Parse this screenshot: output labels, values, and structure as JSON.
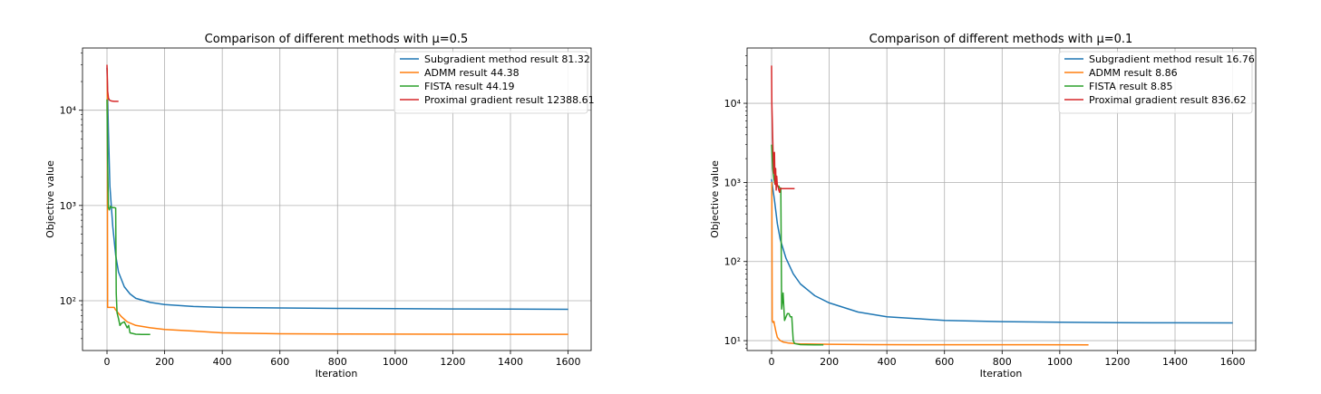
{
  "colors": {
    "subgradient": "#1f77b4",
    "admm": "#ff7f0e",
    "fista": "#2ca02c",
    "proximal": "#d62728",
    "grid": "#b0b0b0"
  },
  "chart_data": [
    {
      "type": "line",
      "title": "Comparison of different methods with μ=0.5",
      "xlabel": "Iteration",
      "ylabel": "Objective value",
      "yscale": "log",
      "xlim": [
        -85,
        1680
      ],
      "ylim": [
        30,
        45000
      ],
      "xticks": [
        0,
        200,
        400,
        600,
        800,
        1000,
        1200,
        1400,
        1600
      ],
      "xtick_labels": [
        "0",
        "200",
        "400",
        "600",
        "800",
        "1000",
        "1200",
        "1400",
        "1600"
      ],
      "yticks": [
        100,
        1000,
        10000
      ],
      "ytick_labels": [
        "10²",
        "10³",
        "10⁴"
      ],
      "grid": true,
      "legend": "top-right",
      "series": [
        {
          "name": "Subgradient method result 81.32",
          "color_key": "subgradient",
          "x": [
            0,
            5,
            10,
            20,
            30,
            40,
            60,
            80,
            100,
            150,
            200,
            300,
            400,
            600,
            800,
            1000,
            1200,
            1400,
            1600
          ],
          "y": [
            28000,
            6000,
            1600,
            600,
            300,
            200,
            140,
            118,
            106,
            96,
            91,
            87,
            85,
            84,
            83,
            82.5,
            82,
            81.6,
            81.32
          ]
        },
        {
          "name": "ADMM result 44.38",
          "color_key": "admm",
          "x": [
            0,
            1,
            2,
            25,
            30,
            50,
            70,
            100,
            150,
            200,
            250,
            300,
            400,
            600,
            800,
            1000,
            1200,
            1400,
            1600
          ],
          "y": [
            27000,
            27000,
            85,
            85,
            80,
            68,
            60,
            55,
            52,
            50,
            49,
            48,
            46,
            45,
            44.8,
            44.6,
            44.5,
            44.4,
            44.38
          ]
        },
        {
          "name": "FISTA result 44.19",
          "color_key": "fista",
          "x": [
            0,
            2,
            5,
            8,
            12,
            15,
            20,
            25,
            30,
            32,
            35,
            40,
            45,
            50,
            60,
            70,
            75,
            80,
            100,
            120,
            150
          ],
          "y": [
            13000,
            3000,
            950,
            900,
            980,
            960,
            950,
            950,
            940,
            120,
            75,
            65,
            55,
            58,
            60,
            52,
            55,
            46,
            44.5,
            44.2,
            44.19
          ]
        },
        {
          "name": "Proximal gradient  result 12388.61",
          "color_key": "proximal",
          "x": [
            0,
            2,
            5,
            8,
            15,
            25,
            40
          ],
          "y": [
            30000,
            16000,
            13500,
            12800,
            12500,
            12400,
            12388.61
          ]
        }
      ]
    },
    {
      "type": "line",
      "title": "Comparison of different methods with μ=0.1",
      "xlabel": "Iteration",
      "ylabel": "Objective value",
      "yscale": "log",
      "xlim": [
        -85,
        1680
      ],
      "ylim": [
        7.5,
        50000
      ],
      "xticks": [
        0,
        200,
        400,
        600,
        800,
        1000,
        1200,
        1400,
        1600
      ],
      "xtick_labels": [
        "0",
        "200",
        "400",
        "600",
        "800",
        "1000",
        "1200",
        "1400",
        "1600"
      ],
      "yticks": [
        10,
        100,
        1000,
        10000
      ],
      "ytick_labels": [
        "10¹",
        "10²",
        "10³",
        "10⁴"
      ],
      "grid": true,
      "legend": "top-right",
      "series": [
        {
          "name": "Subgradient method result 16.76",
          "color_key": "subgradient",
          "x": [
            0,
            5,
            10,
            20,
            30,
            50,
            75,
            100,
            150,
            200,
            300,
            400,
            500,
            600,
            800,
            1000,
            1200,
            1400,
            1600
          ],
          "y": [
            1100,
            800,
            600,
            300,
            190,
            110,
            70,
            52,
            37,
            30,
            23,
            20,
            19,
            18,
            17.4,
            17.1,
            16.9,
            16.8,
            16.76
          ]
        },
        {
          "name": "ADMM result 8.86",
          "color_key": "admm",
          "x": [
            0,
            1,
            2,
            5,
            8,
            10,
            15,
            20,
            30,
            40,
            60,
            100,
            200,
            350,
            500,
            800,
            1100
          ],
          "y": [
            1000,
            1000,
            18,
            17,
            17.5,
            16,
            13,
            11,
            10,
            9.6,
            9.3,
            9.1,
            9.0,
            8.9,
            8.88,
            8.87,
            8.86
          ]
        },
        {
          "name": "FISTA result 8.85",
          "color_key": "fista",
          "x": [
            0,
            2,
            4,
            8,
            12,
            20,
            25,
            28,
            32,
            35,
            40,
            45,
            50,
            55,
            60,
            65,
            70,
            75,
            80,
            100,
            150,
            180
          ],
          "y": [
            3000,
            2000,
            1500,
            1100,
            950,
            900,
            900,
            850,
            850,
            25,
            40,
            18,
            20,
            22,
            22,
            20,
            20,
            10,
            9.2,
            8.9,
            8.86,
            8.85
          ]
        },
        {
          "name": "Proximal gradient  result 836.62",
          "color_key": "proximal",
          "x": [
            0,
            1,
            3,
            5,
            8,
            10,
            12,
            14,
            16,
            18,
            20,
            22,
            25,
            28,
            30,
            40,
            80
          ],
          "y": [
            30000,
            10000,
            4800,
            2500,
            1300,
            2400,
            950,
            1500,
            800,
            1200,
            900,
            900,
            800,
            750,
            836,
            836.62,
            836.62
          ]
        }
      ]
    }
  ]
}
